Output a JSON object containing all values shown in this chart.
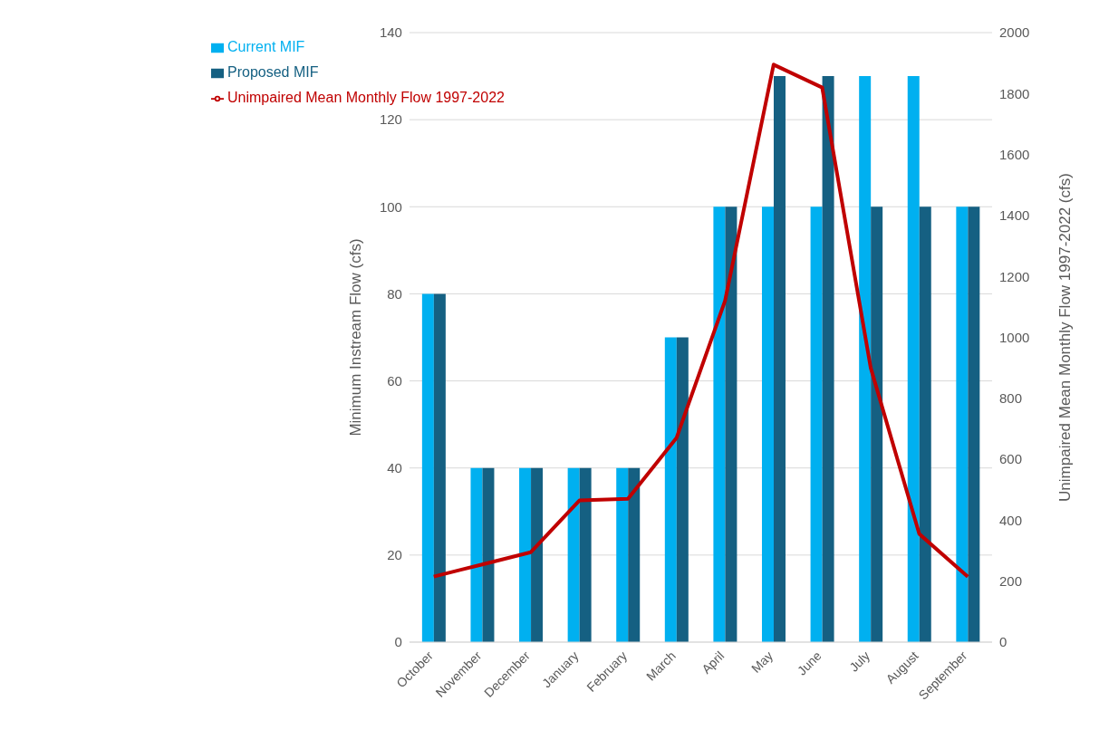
{
  "chart_data": {
    "type": "bar",
    "categories": [
      "October",
      "November",
      "December",
      "January",
      "February",
      "March",
      "April",
      "May",
      "June",
      "July",
      "August",
      "September"
    ],
    "series": [
      {
        "name": "Current MIF",
        "color": "#00b0f0",
        "values": [
          80,
          40,
          40,
          40,
          40,
          70,
          100,
          100,
          100,
          130,
          130,
          100
        ]
      },
      {
        "name": "Proposed MIF",
        "color": "#156082",
        "values": [
          80,
          40,
          40,
          40,
          40,
          70,
          100,
          130,
          130,
          100,
          100,
          100
        ]
      },
      {
        "name": "Unimpaired Mean Monthly Flow 1997-2022",
        "type": "line",
        "axis": "y2",
        "color": "#c00000",
        "values": [
          215,
          255,
          295,
          465,
          470,
          670,
          1120,
          1895,
          1820,
          900,
          355,
          215
        ]
      }
    ],
    "ylabel": "Minimum Instream Flow (cfs)",
    "y2label": "Unimpaired Mean Monthly Flow 1997-2022 (cfs)",
    "ylim": [
      0,
      140
    ],
    "yticks": [
      0,
      20,
      40,
      60,
      80,
      100,
      120,
      140
    ],
    "y2lim": [
      0,
      2000
    ],
    "y2ticks": [
      0,
      200,
      400,
      600,
      800,
      1000,
      1200,
      1400,
      1600,
      1800,
      2000
    ],
    "grid": "y",
    "legend": "top left",
    "marker": "none",
    "line_style": "solid"
  }
}
